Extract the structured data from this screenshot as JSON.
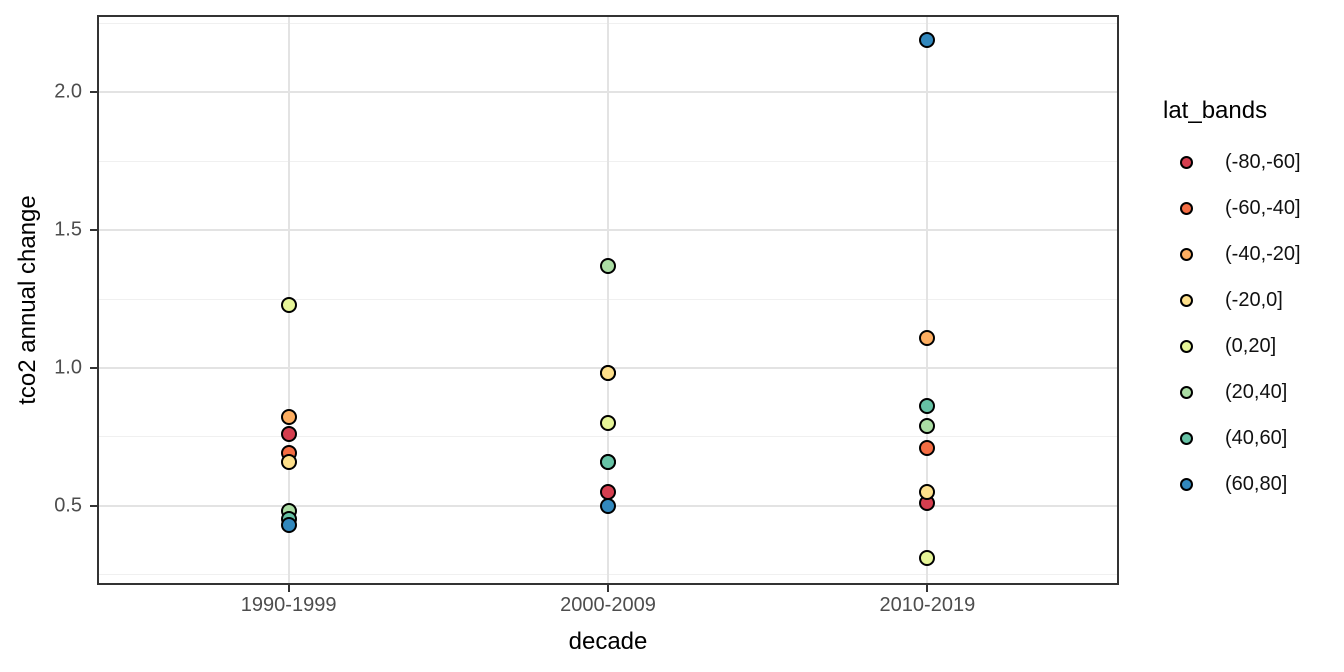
{
  "chart_data": {
    "type": "scatter",
    "title": "",
    "xlabel": "decade",
    "ylabel": "tco2 annual change",
    "categories": [
      "1990-1999",
      "2000-2009",
      "2010-2019"
    ],
    "legend_title": "lat_bands",
    "legend_position": "right",
    "grid": true,
    "ylim": [
      0.212,
      2.281
    ],
    "y_major_ticks": [
      0.5,
      1.0,
      1.5,
      2.0
    ],
    "y_tick_labels": [
      "0.5",
      "1.0",
      "1.5",
      "2.0"
    ],
    "y_minor_gridlines": [
      0.25,
      0.75,
      1.25,
      1.75,
      2.25
    ],
    "series": [
      {
        "name": "(-80,-60]",
        "color": "#D53E4F",
        "values": [
          0.76,
          0.55,
          0.51
        ]
      },
      {
        "name": "(-60,-40]",
        "color": "#F46D43",
        "values": [
          0.69,
          0.66,
          0.71
        ]
      },
      {
        "name": "(-40,-20]",
        "color": "#FDAE61",
        "values": [
          0.82,
          0.98,
          1.11
        ]
      },
      {
        "name": "(-20,0]",
        "color": "#FEE08B",
        "values": [
          0.66,
          0.98,
          0.55
        ]
      },
      {
        "name": "(0,20]",
        "color": "#E6F598",
        "values": [
          1.23,
          0.8,
          0.31
        ]
      },
      {
        "name": "(20,40]",
        "color": "#ABDDA4",
        "values": [
          0.48,
          1.37,
          0.79
        ]
      },
      {
        "name": "(40,60]",
        "color": "#66C2A5",
        "values": [
          0.45,
          0.66,
          0.86
        ]
      },
      {
        "name": "(60,80]",
        "color": "#3288BD",
        "values": [
          0.43,
          0.5,
          2.19
        ]
      }
    ]
  },
  "colors": {
    "panel_background": "#ffffff",
    "panel_border": "#333333",
    "gridline_major": "#e3e3e3",
    "gridline_minor": "#f0f0f0",
    "point_outline": "#000000",
    "tick_label": "#4d4d4d",
    "axis_title": "#000000"
  }
}
